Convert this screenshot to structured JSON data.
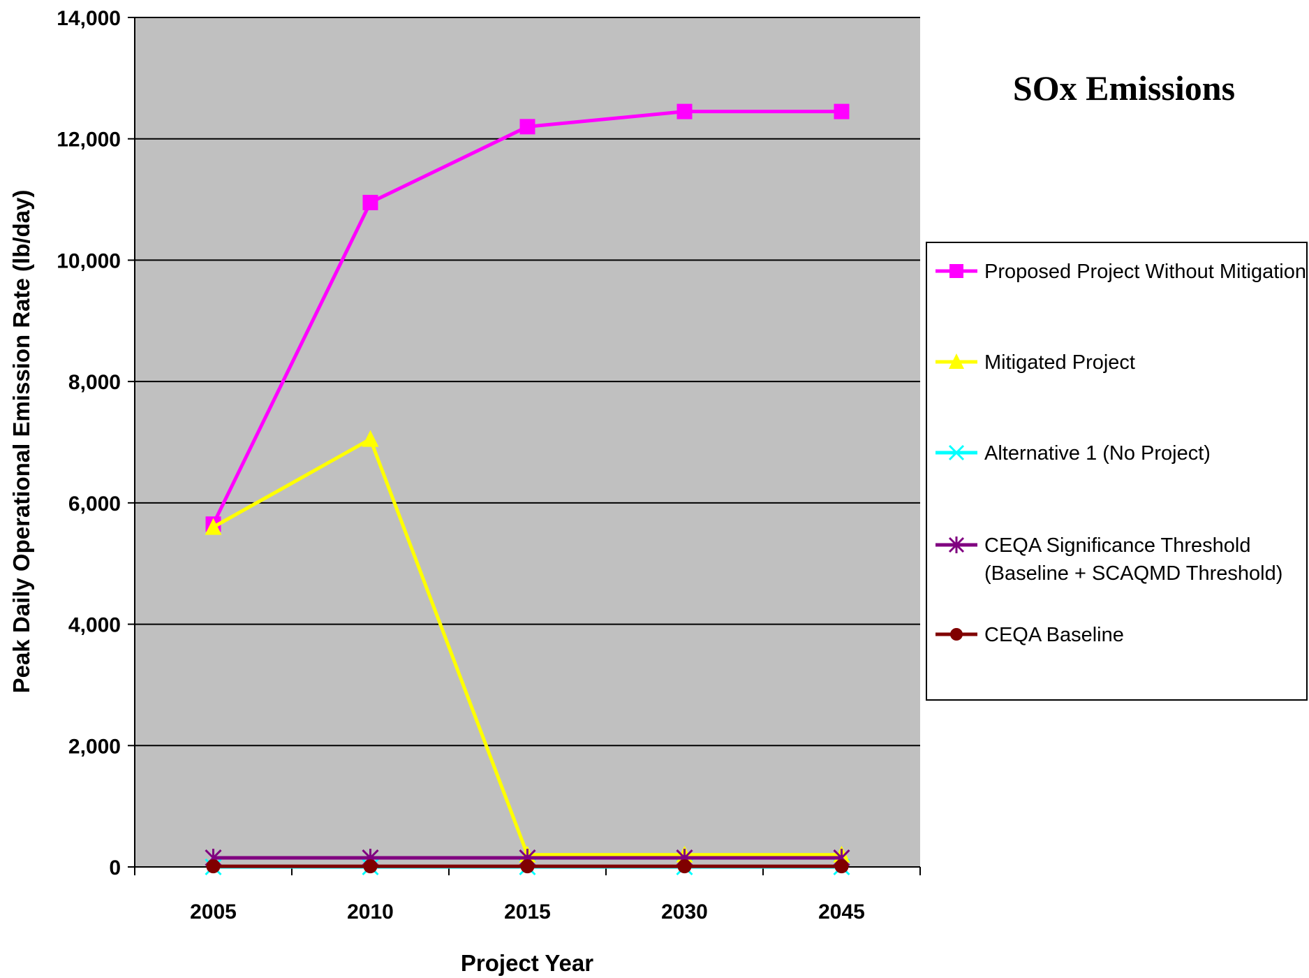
{
  "chart_data": {
    "type": "line",
    "title": "SOx Emissions",
    "xlabel": "Project Year",
    "ylabel": "Peak Daily Operational Emission Rate (lb/day)",
    "categories": [
      "2005",
      "2010",
      "2015",
      "2030",
      "2045"
    ],
    "ylim": [
      0,
      14000
    ],
    "yticks": [
      0,
      2000,
      4000,
      6000,
      8000,
      10000,
      12000,
      14000
    ],
    "ytick_labels": [
      "0",
      "2,000",
      "4,000",
      "6,000",
      "8,000",
      "10,000",
      "12,000",
      "14,000"
    ],
    "grid": "horizontal",
    "plot_background": "#C0C0C0",
    "legend_position": "right",
    "series": [
      {
        "name": "Proposed Project Without Mitigation",
        "values": [
          5650,
          10950,
          12200,
          12450,
          12450
        ],
        "color": "#FF00FF",
        "marker": "square"
      },
      {
        "name": "Mitigated Project",
        "values": [
          5600,
          7050,
          200,
          200,
          200
        ],
        "color": "#FFFF00",
        "marker": "triangle"
      },
      {
        "name": "Alternative 1 (No Project)",
        "values": [
          0,
          0,
          0,
          0,
          0
        ],
        "color": "#00FFFF",
        "marker": "x"
      },
      {
        "name": "CEQA Significance Threshold",
        "name_line2": "(Baseline + SCAQMD Threshold)",
        "values": [
          150,
          150,
          150,
          150,
          150
        ],
        "color": "#800080",
        "marker": "star"
      },
      {
        "name": "CEQA Baseline",
        "values": [
          10,
          10,
          10,
          10,
          10
        ],
        "color": "#800000",
        "marker": "circle"
      }
    ]
  }
}
